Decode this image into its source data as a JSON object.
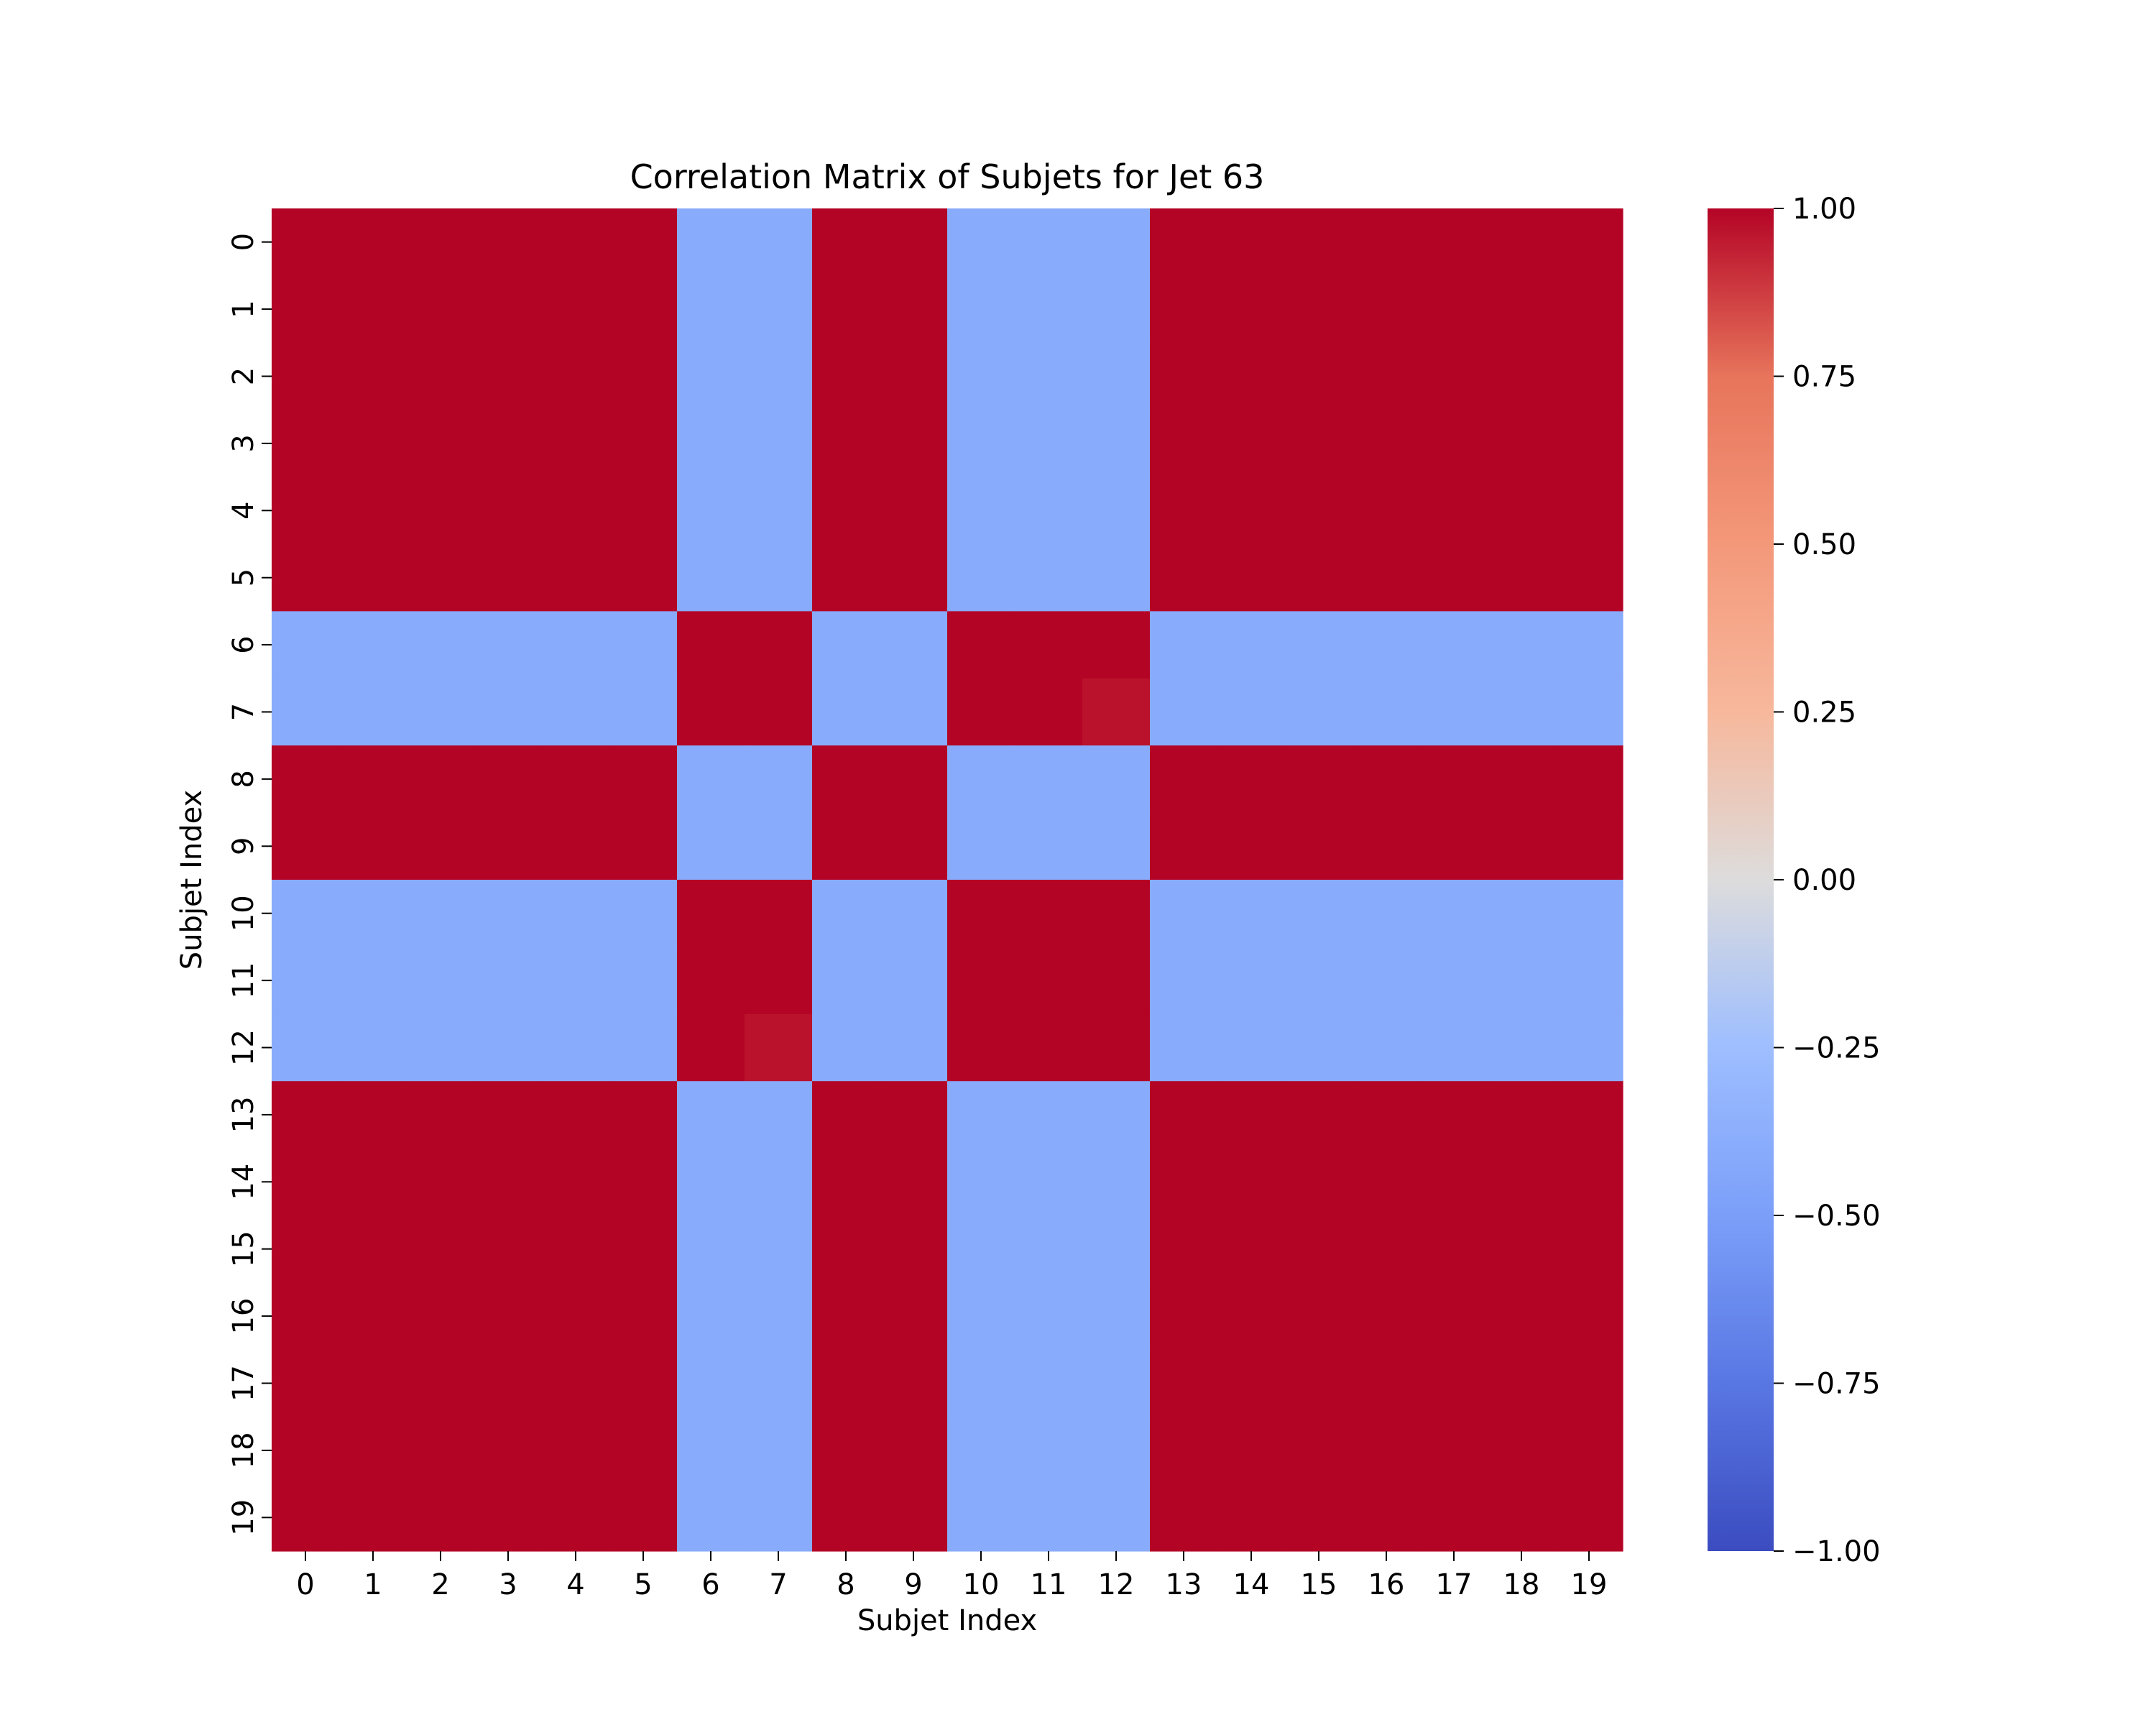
{
  "chart_data": {
    "type": "heatmap",
    "title": "Correlation Matrix of Subjets for Jet 63",
    "xlabel": "Subjet Index",
    "ylabel": "Subjet Index",
    "x_categories": [
      "0",
      "1",
      "2",
      "3",
      "4",
      "5",
      "6",
      "7",
      "8",
      "9",
      "10",
      "11",
      "12",
      "13",
      "14",
      "15",
      "16",
      "17",
      "18",
      "19"
    ],
    "y_categories": [
      "0",
      "1",
      "2",
      "3",
      "4",
      "5",
      "6",
      "7",
      "8",
      "9",
      "10",
      "11",
      "12",
      "13",
      "14",
      "15",
      "16",
      "17",
      "18",
      "19"
    ],
    "group_a_indices": [
      0,
      1,
      2,
      3,
      4,
      5,
      8,
      9,
      13,
      14,
      15,
      16,
      17,
      18,
      19
    ],
    "group_b_indices": [
      6,
      7,
      10,
      11,
      12
    ],
    "same_group_value": 1.0,
    "cross_group_value": -0.4,
    "exceptions": [
      {
        "row": 7,
        "col": 12,
        "value": 0.97
      },
      {
        "row": 12,
        "col": 7,
        "value": 0.97
      }
    ],
    "colormap": "coolwarm",
    "colorbar": {
      "vmin": -1.0,
      "vmax": 1.0,
      "ticks": [
        1.0,
        0.75,
        0.5,
        0.25,
        0.0,
        -0.25,
        -0.5,
        -0.75,
        -1.0
      ],
      "tick_labels": [
        "1.00",
        "0.75",
        "0.50",
        "0.25",
        "0.00",
        "−0.25",
        "−0.50",
        "−0.75",
        "−1.00"
      ],
      "gradient_stops": [
        {
          "value": -1.0,
          "color": "#3b4cc0"
        },
        {
          "value": -0.75,
          "color": "#5977e3"
        },
        {
          "value": -0.5,
          "color": "#7b9ff9"
        },
        {
          "value": -0.25,
          "color": "#9ebeff"
        },
        {
          "value": 0.0,
          "color": "#dddcdc"
        },
        {
          "value": 0.25,
          "color": "#f7b89c"
        },
        {
          "value": 0.5,
          "color": "#f4987a"
        },
        {
          "value": 0.75,
          "color": "#e7745b"
        },
        {
          "value": 1.0,
          "color": "#b40426"
        }
      ]
    }
  }
}
